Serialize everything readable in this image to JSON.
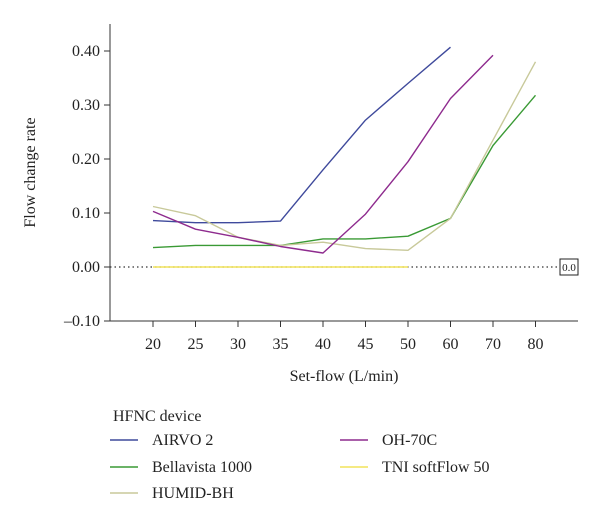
{
  "chart_data": {
    "type": "line",
    "xlabel": "Set-flow (L/min)",
    "ylabel": "Flow change rate",
    "categories": [
      "20",
      "25",
      "30",
      "35",
      "40",
      "45",
      "50",
      "60",
      "70",
      "80"
    ],
    "ylim": [
      -0.1,
      0.45
    ],
    "yticks": [
      -0.1,
      0.0,
      0.1,
      0.2,
      0.3,
      0.4
    ],
    "ytick_labels": [
      "–0.10",
      "0.00",
      "0.10",
      "0.20",
      "0.30",
      "0.40"
    ],
    "grid": false,
    "reference_line": {
      "y": 0.0,
      "style": "dotted",
      "label": "0.0"
    },
    "legend": {
      "title": "HFNC device",
      "placement": "bottom"
    },
    "series": [
      {
        "name": "AIRVO 2",
        "color": "#3f4a9c",
        "values": [
          0.086,
          0.082,
          0.082,
          0.085,
          0.18,
          0.272,
          0.34,
          0.407,
          null,
          null
        ]
      },
      {
        "name": "Bellavista 1000",
        "color": "#3a9a35",
        "values": [
          0.036,
          0.04,
          0.04,
          0.04,
          0.052,
          0.052,
          0.057,
          0.09,
          0.225,
          0.318
        ]
      },
      {
        "name": "HUMID-BH",
        "color": "#c8c99a",
        "values": [
          0.112,
          0.095,
          0.055,
          0.04,
          0.046,
          0.034,
          0.031,
          0.09,
          0.235,
          0.38
        ]
      },
      {
        "name": "OH-70C",
        "color": "#8e2b8e",
        "values": [
          0.103,
          0.07,
          0.055,
          0.038,
          0.026,
          0.098,
          0.195,
          0.312,
          0.392,
          null
        ]
      },
      {
        "name": "TNI softFlow 50",
        "color": "#f2e35a",
        "values": [
          0.0,
          0.0,
          0.0,
          0.0,
          0.0,
          0.0,
          0.0,
          null,
          null,
          null
        ]
      }
    ]
  }
}
